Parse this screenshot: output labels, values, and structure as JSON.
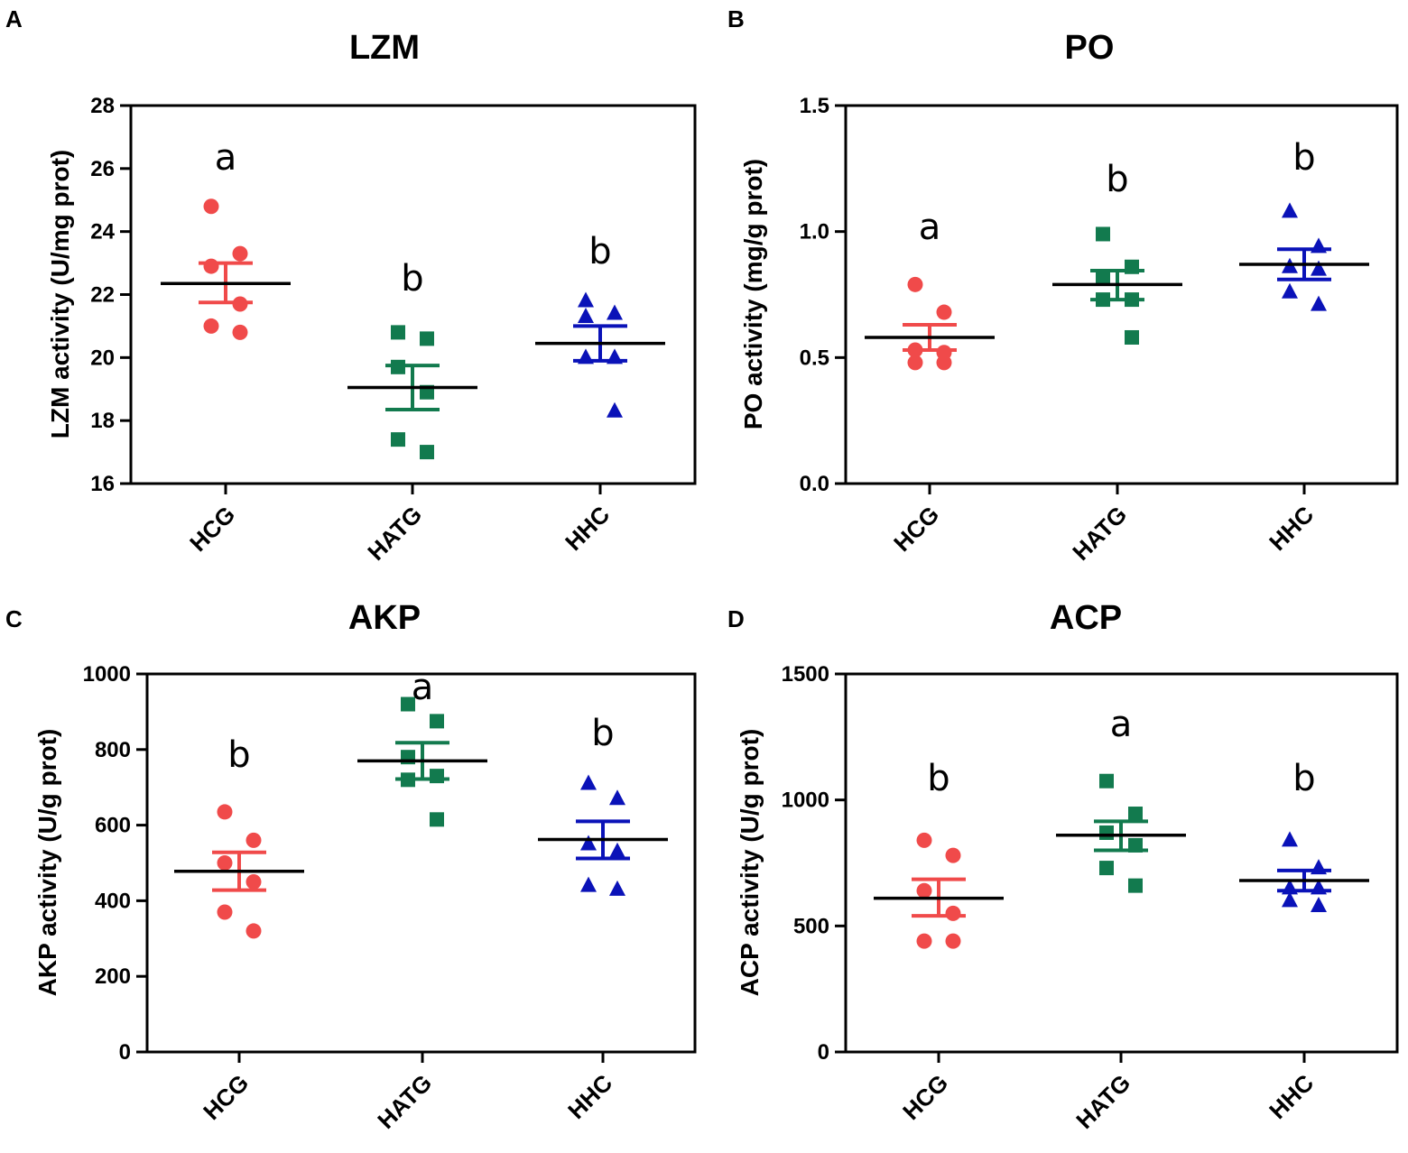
{
  "chart_data": [
    {
      "panel": "A",
      "type": "scatter",
      "title": "LZM",
      "ylabel": "LZM activity (U/mg prot)",
      "xlabel": "",
      "ylim": [
        16,
        28
      ],
      "yticks": [
        16,
        18,
        20,
        22,
        24,
        26,
        28
      ],
      "categories": [
        "HCG",
        "HATG",
        "HHC"
      ],
      "series": [
        {
          "name": "HCG",
          "color": "#f04a4a",
          "marker": "circle",
          "points": [
            24.8,
            23.3,
            22.9,
            21.7,
            21.0,
            20.8
          ],
          "mean": 22.35,
          "sem_low": 21.75,
          "sem_high": 23.0,
          "sig": "a"
        },
        {
          "name": "HATG",
          "color": "#127a4e",
          "marker": "square",
          "points": [
            20.8,
            20.6,
            19.7,
            18.9,
            17.4,
            17.0
          ],
          "mean": 19.05,
          "sem_low": 18.35,
          "sem_high": 19.75,
          "sig": "b"
        },
        {
          "name": "HHC",
          "color": "#0a12b8",
          "marker": "triangle",
          "points": [
            21.8,
            21.4,
            21.3,
            20.0,
            20.0,
            18.3
          ],
          "mean": 20.45,
          "sem_low": 19.9,
          "sem_high": 21.0,
          "sig": "b"
        }
      ]
    },
    {
      "panel": "B",
      "type": "scatter",
      "title": "PO",
      "ylabel": "PO activity (mg/g prot)",
      "xlabel": "",
      "ylim": [
        0.0,
        1.5
      ],
      "yticks": [
        "0.0",
        "0.5",
        "1.0",
        "1.5"
      ],
      "categories": [
        "HCG",
        "HATG",
        "HHC"
      ],
      "series": [
        {
          "name": "HCG",
          "color": "#f04a4a",
          "marker": "circle",
          "points": [
            0.79,
            0.68,
            0.53,
            0.52,
            0.48,
            0.48
          ],
          "mean": 0.58,
          "sem_low": 0.53,
          "sem_high": 0.63,
          "sig": "a"
        },
        {
          "name": "HATG",
          "color": "#127a4e",
          "marker": "square",
          "points": [
            0.99,
            0.86,
            0.82,
            0.73,
            0.73,
            0.58
          ],
          "mean": 0.79,
          "sem_low": 0.73,
          "sem_high": 0.845,
          "sig": "b"
        },
        {
          "name": "HHC",
          "color": "#0a12b8",
          "marker": "triangle",
          "points": [
            1.08,
            0.94,
            0.86,
            0.85,
            0.76,
            0.71
          ],
          "mean": 0.87,
          "sem_low": 0.81,
          "sem_high": 0.93,
          "sig": "b"
        }
      ]
    },
    {
      "panel": "C",
      "type": "scatter",
      "title": "AKP",
      "ylabel": "AKP activity (U/g prot)",
      "xlabel": "",
      "ylim": [
        0,
        1000
      ],
      "yticks": [
        0,
        200,
        400,
        600,
        800,
        1000
      ],
      "categories": [
        "HCG",
        "HATG",
        "HHC"
      ],
      "series": [
        {
          "name": "HCG",
          "color": "#f04a4a",
          "marker": "circle",
          "points": [
            635,
            560,
            500,
            450,
            370,
            320
          ],
          "mean": 478,
          "sem_low": 428,
          "sem_high": 528,
          "sig": "b"
        },
        {
          "name": "HATG",
          "color": "#127a4e",
          "marker": "square",
          "points": [
            920,
            875,
            780,
            730,
            720,
            615
          ],
          "mean": 770,
          "sem_low": 722,
          "sem_high": 818,
          "sig": "a"
        },
        {
          "name": "HHC",
          "color": "#0a12b8",
          "marker": "triangle",
          "points": [
            710,
            670,
            550,
            530,
            440,
            430
          ],
          "mean": 562,
          "sem_low": 512,
          "sem_high": 610,
          "sig": "b"
        }
      ]
    },
    {
      "panel": "D",
      "type": "scatter",
      "title": "ACP",
      "ylabel": "ACP activity (U/g prot)",
      "xlabel": "",
      "ylim": [
        0,
        1500
      ],
      "yticks": [
        0,
        500,
        1000,
        1500
      ],
      "categories": [
        "HCG",
        "HATG",
        "HHC"
      ],
      "series": [
        {
          "name": "HCG",
          "color": "#f04a4a",
          "marker": "circle",
          "points": [
            840,
            780,
            640,
            550,
            440,
            440
          ],
          "mean": 610,
          "sem_low": 540,
          "sem_high": 685,
          "sig": "b"
        },
        {
          "name": "HATG",
          "color": "#127a4e",
          "marker": "square",
          "points": [
            1075,
            945,
            870,
            820,
            730,
            660
          ],
          "mean": 860,
          "sem_low": 800,
          "sem_high": 915,
          "sig": "a"
        },
        {
          "name": "HHC",
          "color": "#0a12b8",
          "marker": "triangle",
          "points": [
            840,
            730,
            650,
            650,
            600,
            580
          ],
          "mean": 680,
          "sem_low": 640,
          "sem_high": 720,
          "sig": "b"
        }
      ]
    }
  ]
}
